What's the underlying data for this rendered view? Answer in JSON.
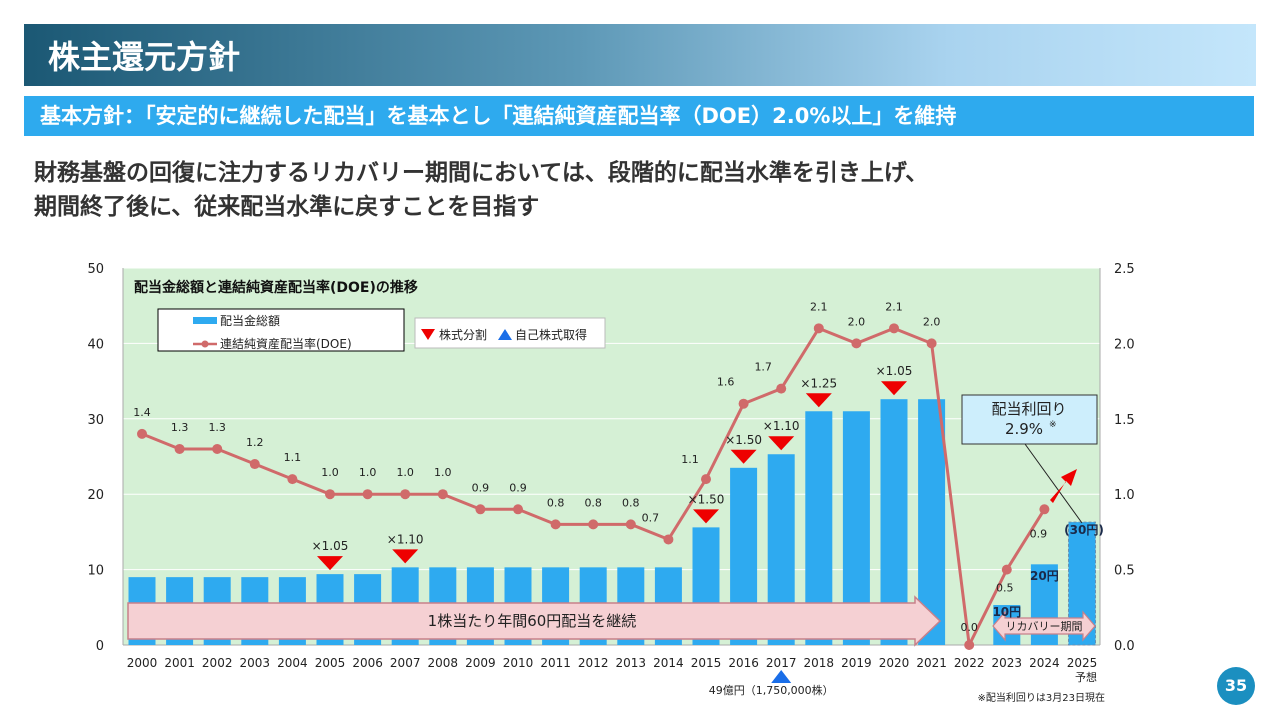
{
  "header": {
    "title": "株主還元方針",
    "policy": "基本方針：「安定的に継続した配当」を基本とし「連結純資産配当率（DOE）2.0%以上」を維持",
    "lead_line1": "財務基盤の回復に注力するリカバリー期間においては、段階的に配当水準を引き上げ、",
    "lead_line2": "期間終了後に、従来配当水準に戻すことを目指す"
  },
  "page_number": "35",
  "chart_data": {
    "type": "bar+line",
    "title": "配当金総額と連結純資産配当率(DOE)の推移",
    "categories": [
      "2000",
      "2001",
      "2002",
      "2003",
      "2004",
      "2005",
      "2006",
      "2007",
      "2008",
      "2009",
      "2010",
      "2011",
      "2012",
      "2013",
      "2014",
      "2015",
      "2016",
      "2017",
      "2018",
      "2019",
      "2020",
      "2021",
      "2022",
      "2023",
      "2024",
      "2025"
    ],
    "category_sublabels": {
      "2025": "予想"
    },
    "left_axis": {
      "ylim": [
        0,
        50
      ],
      "ticks": [
        "0",
        "10",
        "20",
        "30",
        "40",
        "50"
      ]
    },
    "right_axis": {
      "ylim": [
        0,
        2.5
      ],
      "ticks": [
        "0.0",
        "0.5",
        "1.0",
        "1.5",
        "2.0",
        "2.5"
      ]
    },
    "grid": true,
    "series": [
      {
        "name": "配当金総額",
        "type": "bar",
        "axis": "left",
        "color": "#2eaaf0",
        "values": [
          9.0,
          9.0,
          9.0,
          9.0,
          9.0,
          9.4,
          9.4,
          10.3,
          10.3,
          10.3,
          10.3,
          10.3,
          10.3,
          10.3,
          10.3,
          15.6,
          23.5,
          25.3,
          31.0,
          31.0,
          32.6,
          32.6,
          0,
          5.3,
          10.7,
          16.3
        ]
      },
      {
        "name": "連結純資産配当率(DOE)",
        "type": "line",
        "axis": "right",
        "color": "#d06a6a",
        "values": [
          1.4,
          1.3,
          1.3,
          1.2,
          1.1,
          1.0,
          1.0,
          1.0,
          1.0,
          0.9,
          0.9,
          0.8,
          0.8,
          0.8,
          0.7,
          1.1,
          1.6,
          1.7,
          2.1,
          2.0,
          2.1,
          2.0,
          0.0,
          0.5,
          0.9,
          null
        ],
        "labels": [
          "1.4",
          "1.3",
          "1.3",
          "1.2",
          "1.1",
          "1.0",
          "1.0",
          "1.0",
          "1.0",
          "0.9",
          "0.9",
          "0.8",
          "0.8",
          "0.8",
          "0.7",
          "1.1",
          "1.6",
          "1.7",
          "2.1",
          "2.0",
          "2.1",
          "2.0",
          "0.0",
          "0.5",
          "0.9",
          ""
        ]
      }
    ],
    "legend": {
      "placement": "top-left",
      "markers": [
        {
          "label": "株式分割",
          "color": "#ee0000",
          "shape": "down-triangle"
        },
        {
          "label": "自己株式取得",
          "color": "#1a6ee8",
          "shape": "up-triangle"
        }
      ]
    },
    "stock_splits": [
      {
        "year": "2005",
        "label": "×1.05"
      },
      {
        "year": "2007",
        "label": "×1.10"
      },
      {
        "year": "2015",
        "label": "×1.50"
      },
      {
        "year": "2016",
        "label": "×1.50"
      },
      {
        "year": "2017",
        "label": "×1.10"
      },
      {
        "year": "2018",
        "label": "×1.25"
      },
      {
        "year": "2020",
        "label": "×1.05"
      }
    ],
    "buyback": {
      "year": "2017",
      "label": "49億円（1,750,000株）"
    },
    "bar_labels": [
      {
        "year": "2023",
        "label": "10円"
      },
      {
        "year": "2024",
        "label": "20円"
      },
      {
        "year": "2025",
        "label": "(30円)"
      }
    ],
    "annotations": {
      "continue_arrow": "1株当たり年間60円配当を継続",
      "recovery_arrow": "リカバリー期間",
      "yield_title": "配当利回り",
      "yield_value": "2.9%",
      "yield_mark": "※",
      "footnote": "※配当利回りは3月23日現在"
    }
  }
}
